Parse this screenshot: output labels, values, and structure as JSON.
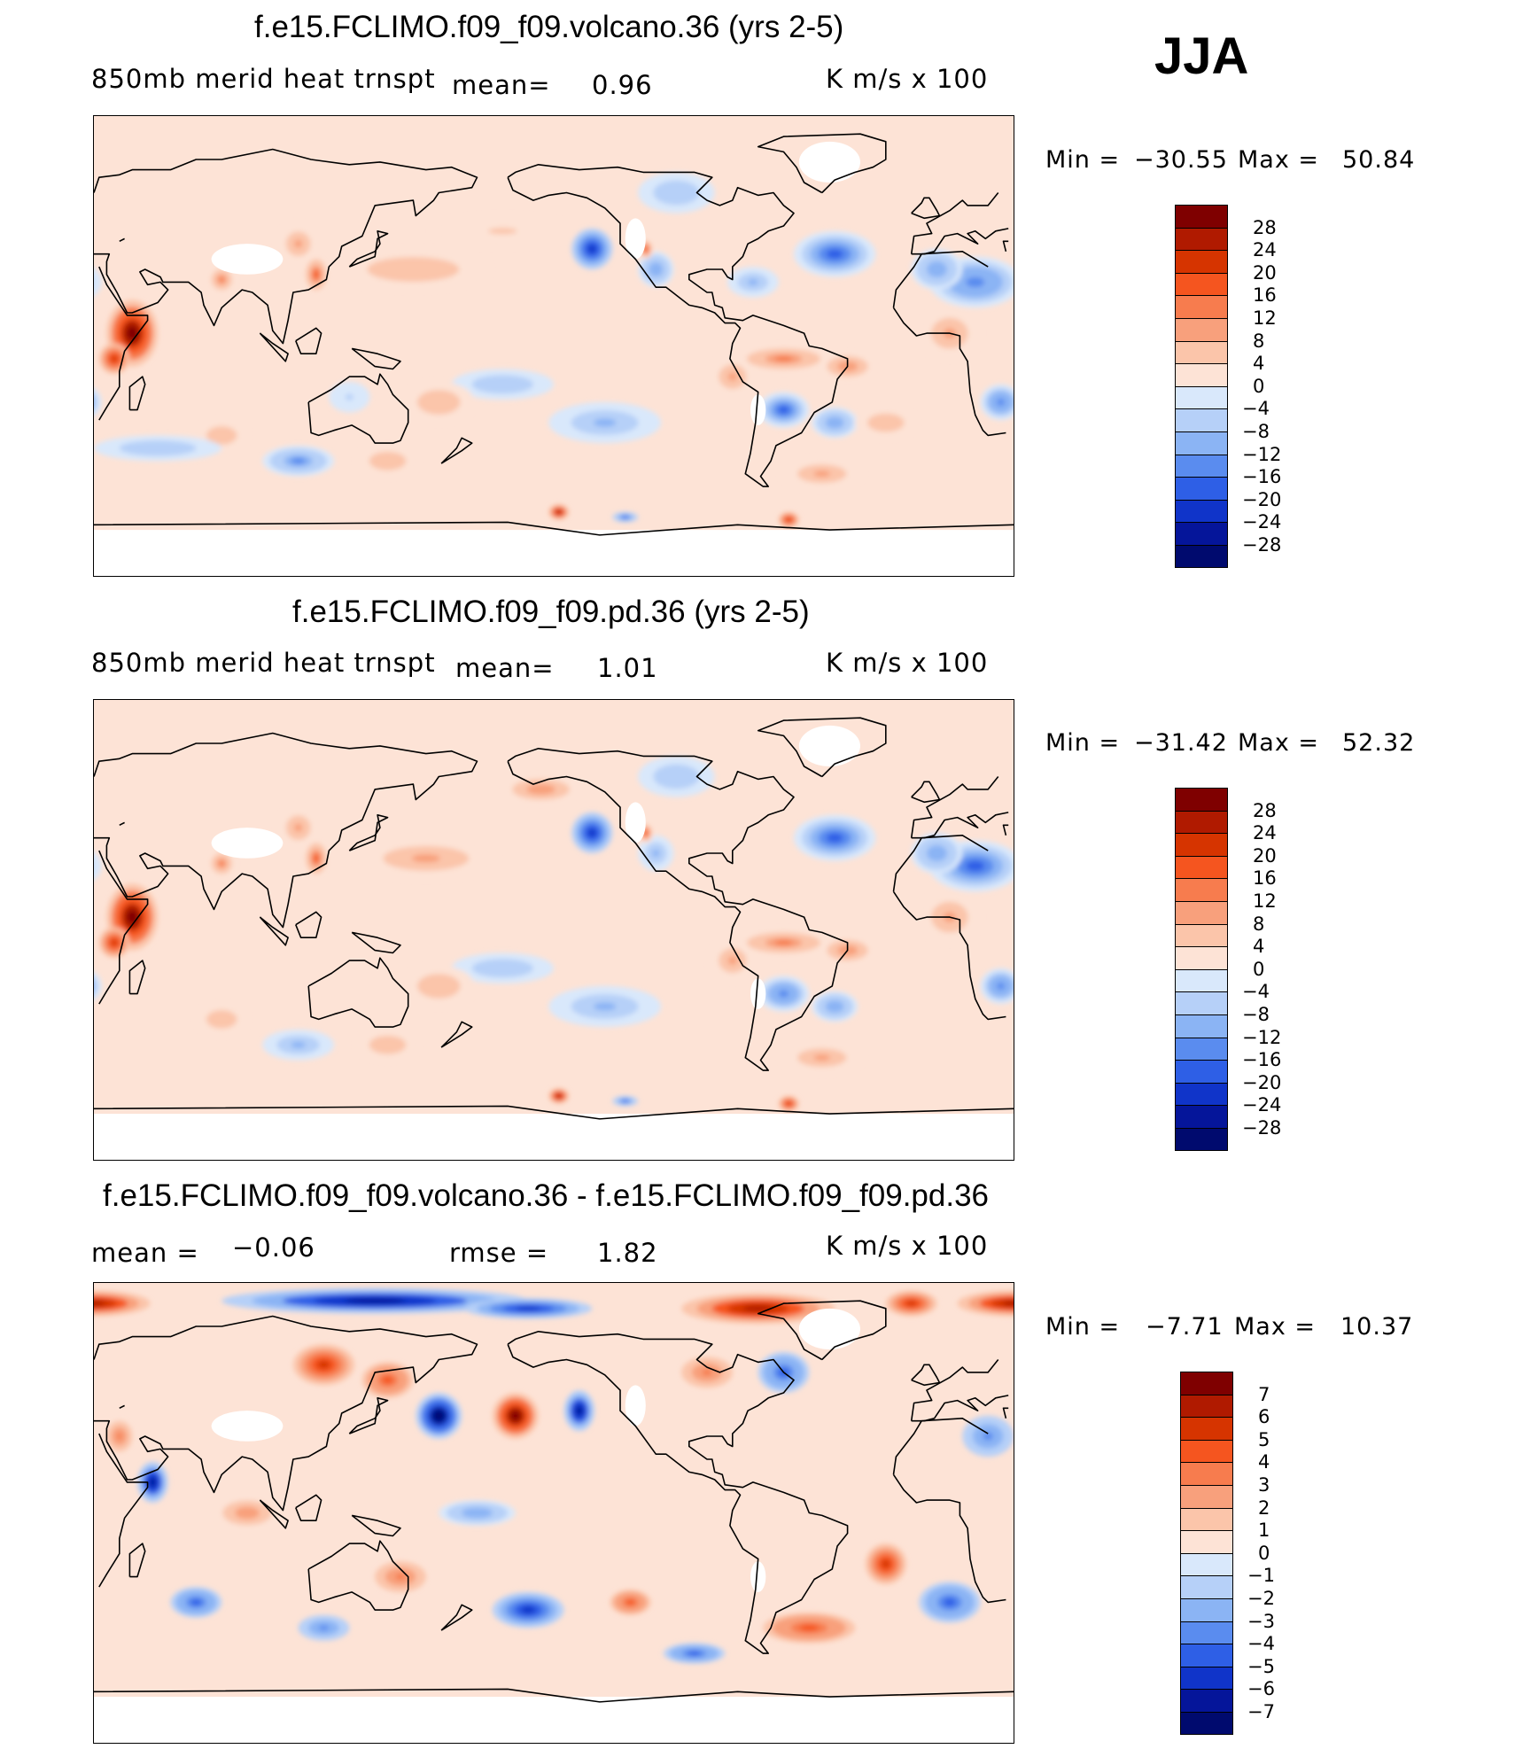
{
  "season": "JJA",
  "panels": [
    {
      "title": "f.e15.FCLIMO.f09_f09.volcano.36 (yrs 2-5)",
      "left_label": "850mb  merid  heat  trnspt",
      "mid_label": "mean=",
      "mid_value": "0.96",
      "units": "K  m/s  x  100",
      "min_label": "Min  =",
      "min_value": "−30.55",
      "max_label": "Max  =",
      "max_value": "50.84",
      "levels": [
        "28",
        "24",
        "20",
        "16",
        "12",
        "8",
        "4",
        "0",
        "−4",
        "−8",
        "−12",
        "−16",
        "−20",
        "−24",
        "−28"
      ]
    },
    {
      "title": "f.e15.FCLIMO.f09_f09.pd.36 (yrs 2-5)",
      "left_label": "850mb  merid  heat  trnspt",
      "mid_label": "mean=",
      "mid_value": "1.01",
      "units": "K  m/s  x  100",
      "min_label": "Min  =",
      "min_value": "−31.42",
      "max_label": "Max  =",
      "max_value": "52.32",
      "levels": [
        "28",
        "24",
        "20",
        "16",
        "12",
        "8",
        "4",
        "0",
        "−4",
        "−8",
        "−12",
        "−16",
        "−20",
        "−24",
        "−28"
      ]
    },
    {
      "title": "f.e15.FCLIMO.f09_f09.volcano.36 - f.e15.FCLIMO.f09_f09.pd.36",
      "left_label": "mean  =",
      "left_value": "−0.06",
      "mid_label": "rmse  =",
      "mid_value": "1.82",
      "units": "K  m/s  x  100",
      "min_label": "Min  =",
      "min_value": "−7.71",
      "max_label": "Max  =",
      "max_value": "10.37",
      "levels": [
        "7",
        "6",
        "5",
        "4",
        "3",
        "2",
        "1",
        "0",
        "−1",
        "−2",
        "−3",
        "−4",
        "−5",
        "−6",
        "−7"
      ]
    }
  ],
  "colorbar_colors": [
    "#7f0000",
    "#b01a00",
    "#d63400",
    "#f5551f",
    "#f77c4e",
    "#f8a07c",
    "#fbc5aa",
    "#fde3d6",
    "#d9e8fb",
    "#b6d0f8",
    "#8bb4f4",
    "#5a8cef",
    "#2e5fe6",
    "#1034c9",
    "#05159a",
    "#000a6e"
  ],
  "chart_data": [
    {
      "type": "heatmap",
      "title": "f.e15.FCLIMO.f09_f09.volcano.36 (yrs 2-5)",
      "variable": "850mb merid heat trnspt",
      "units": "K m/s x 100",
      "mean": 0.96,
      "min": -30.55,
      "max": 50.84,
      "contour_levels": [
        -28,
        -24,
        -20,
        -16,
        -12,
        -8,
        -4,
        0,
        4,
        8,
        12,
        16,
        20,
        24,
        28
      ],
      "blobs": [
        {
          "lon": 45,
          "lat": 5,
          "rx": 10,
          "ry": 13,
          "v": 30
        },
        {
          "lon": 38,
          "lat": -5,
          "rx": 6,
          "ry": 6,
          "v": 20
        },
        {
          "lon": 15,
          "lat": 25,
          "rx": 18,
          "ry": 10,
          "v": -14
        },
        {
          "lon": 0,
          "lat": 30,
          "rx": 10,
          "ry": 8,
          "v": -10
        },
        {
          "lon": 25,
          "lat": -22,
          "rx": 8,
          "ry": 7,
          "v": -14
        },
        {
          "lon": 5,
          "lat": 5,
          "rx": 12,
          "ry": 10,
          "v": 8
        },
        {
          "lon": 117,
          "lat": 28,
          "rx": 4,
          "ry": 6,
          "v": 18
        },
        {
          "lon": 80,
          "lat": 26,
          "rx": 5,
          "ry": 5,
          "v": 12
        },
        {
          "lon": 110,
          "lat": 40,
          "rx": 8,
          "ry": 8,
          "v": 8
        },
        {
          "lon": 155,
          "lat": 30,
          "rx": 30,
          "ry": 8,
          "v": 6
        },
        {
          "lon": 190,
          "lat": 45,
          "rx": 28,
          "ry": 6,
          "v": 4
        },
        {
          "lon": 225,
          "lat": 38,
          "rx": 8,
          "ry": 8,
          "v": -22
        },
        {
          "lon": 250,
          "lat": 30,
          "rx": 7,
          "ry": 7,
          "v": -10
        },
        {
          "lon": 246,
          "lat": 38,
          "rx": 3,
          "ry": 4,
          "v": 16
        },
        {
          "lon": 258,
          "lat": 60,
          "rx": 15,
          "ry": 8,
          "v": -6
        },
        {
          "lon": 320,
          "lat": 36,
          "rx": 16,
          "ry": 9,
          "v": -16
        },
        {
          "lon": 288,
          "lat": 25,
          "rx": 10,
          "ry": 6,
          "v": -8
        },
        {
          "lon": 300,
          "lat": -5,
          "rx": 18,
          "ry": 5,
          "v": 12
        },
        {
          "lon": 325,
          "lat": -8,
          "rx": 10,
          "ry": 5,
          "v": 10
        },
        {
          "lon": 300,
          "lat": -25,
          "rx": 10,
          "ry": 7,
          "v": -16
        },
        {
          "lon": 320,
          "lat": -30,
          "rx": 9,
          "ry": 6,
          "v": -10
        },
        {
          "lon": 280,
          "lat": -12,
          "rx": 9,
          "ry": 8,
          "v": 8
        },
        {
          "lon": 190,
          "lat": -15,
          "rx": 20,
          "ry": 6,
          "v": -6
        },
        {
          "lon": 165,
          "lat": -22,
          "rx": 14,
          "ry": 8,
          "v": 6
        },
        {
          "lon": 145,
          "lat": -45,
          "rx": 12,
          "ry": 6,
          "v": 6
        },
        {
          "lon": 110,
          "lat": -45,
          "rx": 14,
          "ry": 6,
          "v": -12
        },
        {
          "lon": 80,
          "lat": -35,
          "rx": 10,
          "ry": 6,
          "v": 6
        },
        {
          "lon": 55,
          "lat": -40,
          "rx": 25,
          "ry": 5,
          "v": -6
        },
        {
          "lon": 130,
          "lat": -20,
          "rx": 8,
          "ry": 6,
          "v": -4
        },
        {
          "lon": 230,
          "lat": -30,
          "rx": 22,
          "ry": 8,
          "v": -8
        },
        {
          "lon": 212,
          "lat": -65,
          "rx": 4,
          "ry": 3,
          "v": 26
        },
        {
          "lon": 302,
          "lat": -68,
          "rx": 4,
          "ry": 3,
          "v": 22
        },
        {
          "lon": 238,
          "lat": -67,
          "rx": 5,
          "ry": 2,
          "v": -18
        },
        {
          "lon": 315,
          "lat": -50,
          "rx": 16,
          "ry": 6,
          "v": 8
        },
        {
          "lon": 340,
          "lat": -30,
          "rx": 12,
          "ry": 6,
          "v": 6
        }
      ],
      "masked": [
        {
          "lon": 90,
          "lat": 34,
          "rx": 14,
          "ry": 6
        },
        {
          "lon": 242,
          "lat": 42,
          "rx": 4,
          "ry": 8
        },
        {
          "lon": 318,
          "lat": 72,
          "rx": 12,
          "ry": 8
        },
        {
          "lon": 290,
          "lat": -25,
          "rx": 3,
          "ry": 6
        }
      ]
    },
    {
      "type": "heatmap",
      "title": "f.e15.FCLIMO.f09_f09.pd.36 (yrs 2-5)",
      "variable": "850mb merid heat trnspt",
      "units": "K m/s x 100",
      "mean": 1.01,
      "min": -31.42,
      "max": 52.32,
      "contour_levels": [
        -28,
        -24,
        -20,
        -16,
        -12,
        -8,
        -4,
        0,
        4,
        8,
        12,
        16,
        20,
        24,
        28
      ],
      "blobs": [
        {
          "lon": 45,
          "lat": 5,
          "rx": 10,
          "ry": 13,
          "v": 30
        },
        {
          "lon": 38,
          "lat": -5,
          "rx": 6,
          "ry": 6,
          "v": 20
        },
        {
          "lon": 15,
          "lat": 25,
          "rx": 18,
          "ry": 10,
          "v": -16
        },
        {
          "lon": 0,
          "lat": 30,
          "rx": 10,
          "ry": 8,
          "v": -10
        },
        {
          "lon": 25,
          "lat": -22,
          "rx": 8,
          "ry": 7,
          "v": -14
        },
        {
          "lon": 5,
          "lat": 5,
          "rx": 12,
          "ry": 10,
          "v": 8
        },
        {
          "lon": 117,
          "lat": 28,
          "rx": 4,
          "ry": 6,
          "v": 18
        },
        {
          "lon": 80,
          "lat": 26,
          "rx": 5,
          "ry": 5,
          "v": 12
        },
        {
          "lon": 110,
          "lat": 40,
          "rx": 8,
          "ry": 8,
          "v": 8
        },
        {
          "lon": 160,
          "lat": 28,
          "rx": 28,
          "ry": 8,
          "v": 8
        },
        {
          "lon": 205,
          "lat": 55,
          "rx": 14,
          "ry": 5,
          "v": 10
        },
        {
          "lon": 225,
          "lat": 38,
          "rx": 8,
          "ry": 8,
          "v": -22
        },
        {
          "lon": 250,
          "lat": 30,
          "rx": 7,
          "ry": 7,
          "v": -8
        },
        {
          "lon": 246,
          "lat": 38,
          "rx": 3,
          "ry": 4,
          "v": 16
        },
        {
          "lon": 258,
          "lat": 60,
          "rx": 15,
          "ry": 8,
          "v": -6
        },
        {
          "lon": 320,
          "lat": 36,
          "rx": 16,
          "ry": 9,
          "v": -16
        },
        {
          "lon": 300,
          "lat": -5,
          "rx": 18,
          "ry": 5,
          "v": 12
        },
        {
          "lon": 325,
          "lat": -8,
          "rx": 10,
          "ry": 5,
          "v": 10
        },
        {
          "lon": 300,
          "lat": -25,
          "rx": 10,
          "ry": 7,
          "v": -14
        },
        {
          "lon": 320,
          "lat": -30,
          "rx": 9,
          "ry": 6,
          "v": -10
        },
        {
          "lon": 280,
          "lat": -12,
          "rx": 9,
          "ry": 8,
          "v": 8
        },
        {
          "lon": 190,
          "lat": -15,
          "rx": 20,
          "ry": 6,
          "v": -6
        },
        {
          "lon": 165,
          "lat": -22,
          "rx": 14,
          "ry": 8,
          "v": 6
        },
        {
          "lon": 145,
          "lat": -45,
          "rx": 12,
          "ry": 6,
          "v": 6
        },
        {
          "lon": 110,
          "lat": -45,
          "rx": 14,
          "ry": 6,
          "v": -8
        },
        {
          "lon": 80,
          "lat": -35,
          "rx": 10,
          "ry": 6,
          "v": 6
        },
        {
          "lon": 230,
          "lat": -30,
          "rx": 22,
          "ry": 8,
          "v": -8
        },
        {
          "lon": 212,
          "lat": -65,
          "rx": 4,
          "ry": 3,
          "v": 26
        },
        {
          "lon": 302,
          "lat": -68,
          "rx": 4,
          "ry": 3,
          "v": 22
        },
        {
          "lon": 238,
          "lat": -67,
          "rx": 5,
          "ry": 2,
          "v": -18
        },
        {
          "lon": 315,
          "lat": -50,
          "rx": 16,
          "ry": 6,
          "v": 8
        }
      ],
      "masked": [
        {
          "lon": 90,
          "lat": 34,
          "rx": 14,
          "ry": 6
        },
        {
          "lon": 242,
          "lat": 42,
          "rx": 4,
          "ry": 8
        },
        {
          "lon": 318,
          "lat": 72,
          "rx": 12,
          "ry": 8
        },
        {
          "lon": 290,
          "lat": -25,
          "rx": 3,
          "ry": 6
        }
      ]
    },
    {
      "type": "heatmap",
      "title": "f.e15.FCLIMO.f09_f09.volcano.36 - f.e15.FCLIMO.f09_f09.pd.36",
      "units": "K m/s x 100",
      "mean": -0.06,
      "rmse": 1.82,
      "min": -7.71,
      "max": 10.37,
      "contour_levels": [
        -7,
        -6,
        -5,
        -4,
        -3,
        -2,
        -1,
        0,
        1,
        2,
        3,
        4,
        5,
        6,
        7
      ],
      "blobs": [
        {
          "lon": 140,
          "lat": 83,
          "rx": 60,
          "ry": 5,
          "v": -6
        },
        {
          "lon": 200,
          "lat": 80,
          "rx": 25,
          "ry": 4,
          "v": -5
        },
        {
          "lon": 290,
          "lat": 80,
          "rx": 30,
          "ry": 6,
          "v": 6
        },
        {
          "lon": 30,
          "lat": 82,
          "rx": 22,
          "ry": 5,
          "v": 6
        },
        {
          "lon": 350,
          "lat": 82,
          "rx": 10,
          "ry": 5,
          "v": 5
        },
        {
          "lon": 120,
          "lat": 58,
          "rx": 12,
          "ry": 8,
          "v": 5
        },
        {
          "lon": 145,
          "lat": 52,
          "rx": 10,
          "ry": 7,
          "v": 4
        },
        {
          "lon": 165,
          "lat": 38,
          "rx": 9,
          "ry": 9,
          "v": -7
        },
        {
          "lon": 195,
          "lat": 38,
          "rx": 9,
          "ry": 9,
          "v": 7
        },
        {
          "lon": 220,
          "lat": 40,
          "rx": 6,
          "ry": 8,
          "v": -6
        },
        {
          "lon": 270,
          "lat": 55,
          "rx": 10,
          "ry": 6,
          "v": 3
        },
        {
          "lon": 300,
          "lat": 55,
          "rx": 10,
          "ry": 8,
          "v": -4
        },
        {
          "lon": 53,
          "lat": 12,
          "rx": 6,
          "ry": 8,
          "v": -6
        },
        {
          "lon": 20,
          "lat": 30,
          "rx": 10,
          "ry": 8,
          "v": -3
        },
        {
          "lon": 40,
          "lat": 30,
          "rx": 5,
          "ry": 6,
          "v": 3
        },
        {
          "lon": 5,
          "lat": -35,
          "rx": 12,
          "ry": 8,
          "v": -4
        },
        {
          "lon": 340,
          "lat": -20,
          "rx": 8,
          "ry": 8,
          "v": 5
        },
        {
          "lon": 310,
          "lat": -45,
          "rx": 18,
          "ry": 6,
          "v": 4
        },
        {
          "lon": 200,
          "lat": -38,
          "rx": 14,
          "ry": 7,
          "v": -5
        },
        {
          "lon": 240,
          "lat": -35,
          "rx": 8,
          "ry": 5,
          "v": 4
        },
        {
          "lon": 70,
          "lat": -35,
          "rx": 10,
          "ry": 6,
          "v": -4
        },
        {
          "lon": 120,
          "lat": -45,
          "rx": 10,
          "ry": 5,
          "v": -3
        },
        {
          "lon": 150,
          "lat": -25,
          "rx": 10,
          "ry": 6,
          "v": 3
        },
        {
          "lon": 265,
          "lat": -55,
          "rx": 12,
          "ry": 4,
          "v": -4
        },
        {
          "lon": 180,
          "lat": 0,
          "rx": 15,
          "ry": 5,
          "v": -2
        },
        {
          "lon": 90,
          "lat": 0,
          "rx": 12,
          "ry": 6,
          "v": 2
        }
      ],
      "masked": [
        {
          "lon": 90,
          "lat": 34,
          "rx": 14,
          "ry": 6
        },
        {
          "lon": 242,
          "lat": 42,
          "rx": 4,
          "ry": 8
        },
        {
          "lon": 318,
          "lat": 72,
          "rx": 12,
          "ry": 8
        },
        {
          "lon": 290,
          "lat": -25,
          "rx": 3,
          "ry": 6
        }
      ]
    }
  ]
}
